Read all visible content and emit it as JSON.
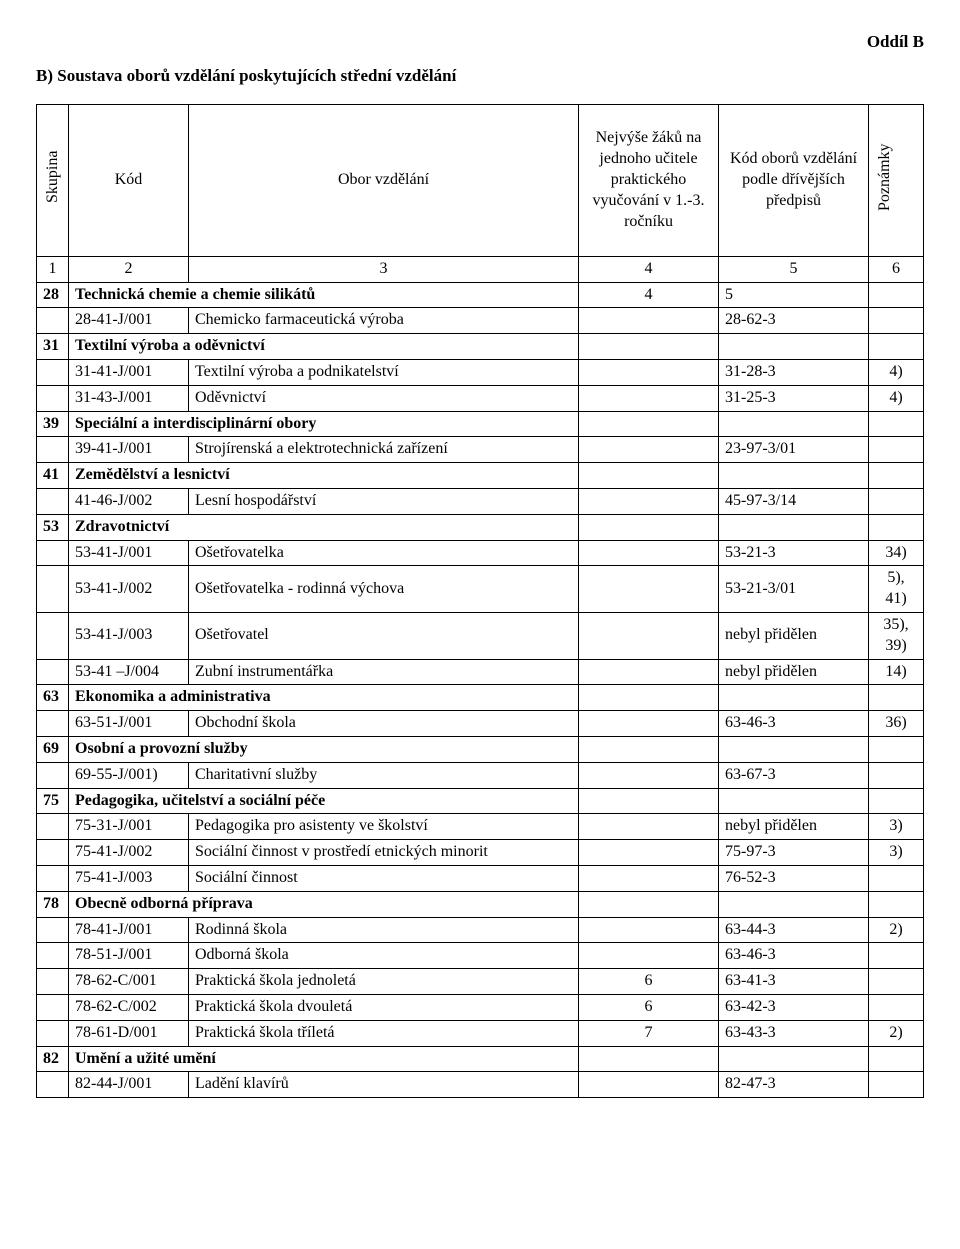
{
  "section_label": "Oddíl B",
  "heading": "B) Soustava oborů vzdělání poskytujících střední vzdělání",
  "header": {
    "skupina": "Skupina",
    "kod": "Kód",
    "obor": "Obor vzdělání",
    "nejvyse": "Nejvýše žáků na jednoho učitele praktického vyučování v 1.-3. ročníku",
    "podle": "Kód oborů vzdělání podle dřívějších předpisů",
    "poznamky": "Poznámky",
    "numrow": [
      "1",
      "2",
      "3",
      "4",
      "5",
      "6"
    ]
  },
  "rows": [
    {
      "type": "group",
      "num": "28",
      "name": "Technická chemie a chemie silikátů",
      "c4": "4",
      "c5": "5",
      "c6": ""
    },
    {
      "type": "item",
      "kod": "28-41-J/001",
      "obor": "Chemicko farmaceutická výroba",
      "c4": "",
      "c5": "28-62-3",
      "c6": ""
    },
    {
      "type": "group",
      "num": "31",
      "name": "Textilní výroba a oděvnictví",
      "c4": "",
      "c5": "",
      "c6": ""
    },
    {
      "type": "item",
      "kod": "31-41-J/001",
      "obor": "Textilní výroba a podnikatelství",
      "c4": "",
      "c5": "31-28-3",
      "c6": "4)"
    },
    {
      "type": "item",
      "kod": "31-43-J/001",
      "obor": "Oděvnictví",
      "c4": "",
      "c5": "31-25-3",
      "c6": "4)"
    },
    {
      "type": "group",
      "num": "39",
      "name": "Speciální a interdisciplinární obory",
      "c4": "",
      "c5": "",
      "c6": ""
    },
    {
      "type": "item",
      "kod": "39-41-J/001",
      "obor": "Strojírenská a elektrotechnická zařízení",
      "c4": "",
      "c5": "23-97-3/01",
      "c6": ""
    },
    {
      "type": "group",
      "num": "41",
      "name": "Zemědělství a lesnictví",
      "c4": "",
      "c5": "",
      "c6": ""
    },
    {
      "type": "item",
      "kod": "41-46-J/002",
      "obor": "Lesní hospodářství",
      "c4": "",
      "c5": "45-97-3/14",
      "c6": ""
    },
    {
      "type": "group",
      "num": "53",
      "name": "Zdravotnictví",
      "c4": "",
      "c5": "",
      "c6": ""
    },
    {
      "type": "item",
      "kod": "53-41-J/001",
      "obor": "Ošetřovatelka",
      "c4": "",
      "c5": "53-21-3",
      "c6": "34)"
    },
    {
      "type": "item",
      "kod": "53-41-J/002",
      "obor": "Ošetřovatelka - rodinná výchova",
      "c4": "",
      "c5": "53-21-3/01",
      "c6": "5), 41)"
    },
    {
      "type": "item",
      "kod": "53-41-J/003",
      "obor": "Ošetřovatel",
      "c4": "",
      "c5": "nebyl přidělen",
      "c6": "35), 39)"
    },
    {
      "type": "item",
      "kod": "53-41 –J/004",
      "obor": "Zubní instrumentářka",
      "c4": "",
      "c5": "nebyl přidělen",
      "c6": "14)"
    },
    {
      "type": "group",
      "num": "63",
      "name": "Ekonomika a administrativa",
      "c4": "",
      "c5": "",
      "c6": ""
    },
    {
      "type": "item",
      "kod": "63-51-J/001",
      "obor": "Obchodní škola",
      "c4": "",
      "c5": "63-46-3",
      "c6": "36)"
    },
    {
      "type": "group",
      "num": "69",
      "name": "Osobní a provozní služby",
      "c4": "",
      "c5": "",
      "c6": ""
    },
    {
      "type": "item",
      "kod": "69-55-J/001)",
      "obor": "Charitativní služby",
      "c4": "",
      "c5": "63-67-3",
      "c6": ""
    },
    {
      "type": "group",
      "num": "75",
      "name": "Pedagogika, učitelství a sociální péče",
      "c4": "",
      "c5": "",
      "c6": ""
    },
    {
      "type": "item",
      "kod": "75-31-J/001",
      "obor": "Pedagogika pro asistenty ve školství",
      "c4": "",
      "c5": "nebyl přidělen",
      "c6": "3)"
    },
    {
      "type": "item",
      "kod": "75-41-J/002",
      "obor": "Sociální činnost v prostředí etnických minorit",
      "c4": "",
      "c5": "75-97-3",
      "c6": "3)"
    },
    {
      "type": "item",
      "kod": "75-41-J/003",
      "obor": "Sociální činnost",
      "c4": "",
      "c5": "76-52-3",
      "c6": ""
    },
    {
      "type": "group",
      "num": "78",
      "name": "Obecně odborná příprava",
      "c4": "",
      "c5": "",
      "c6": ""
    },
    {
      "type": "item",
      "kod": "78-41-J/001",
      "obor": "Rodinná škola",
      "c4": "",
      "c5": "63-44-3",
      "c6": "2)"
    },
    {
      "type": "item",
      "kod": "78-51-J/001",
      "obor": "Odborná škola",
      "c4": "",
      "c5": "63-46-3",
      "c6": ""
    },
    {
      "type": "item",
      "kod": "78-62-C/001",
      "obor": "Praktická škola jednoletá",
      "c4": "6",
      "c5": "63-41-3",
      "c6": ""
    },
    {
      "type": "item",
      "kod": "78-62-C/002",
      "obor": "Praktická škola dvouletá",
      "c4": "6",
      "c5": "63-42-3",
      "c6": ""
    },
    {
      "type": "item",
      "kod": "78-61-D/001",
      "obor": "Praktická škola tříletá",
      "c4": "7",
      "c5": "63-43-3",
      "c6": "2)"
    },
    {
      "type": "group",
      "num": "82",
      "name": "Umění a užité umění",
      "c4": "",
      "c5": "",
      "c6": ""
    },
    {
      "type": "item",
      "kod": "82-44-J/001",
      "obor": "Ladění klavírů",
      "c4": "",
      "c5": "82-47-3",
      "c6": ""
    }
  ]
}
